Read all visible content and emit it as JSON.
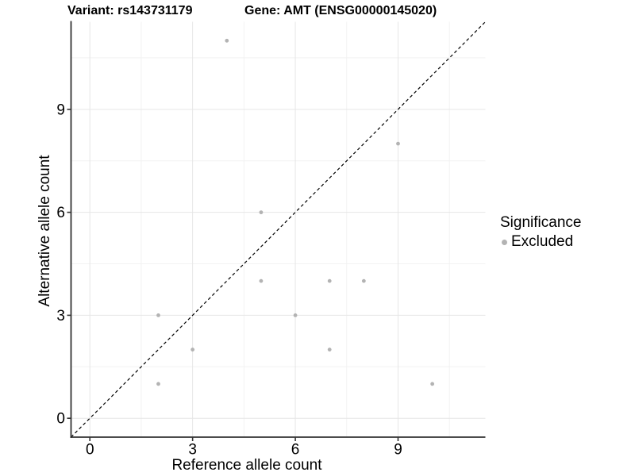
{
  "titles": {
    "variant": "Variant: rs143731179",
    "gene": "Gene: AMT (ENSG00000145020)"
  },
  "chart_data": {
    "type": "scatter",
    "title_left": "Variant: rs143731179",
    "title_right": "Gene: AMT (ENSG00000145020)",
    "xlabel": "Reference allele count",
    "ylabel": "Alternative allele count",
    "xlim": [
      -0.55,
      11.55
    ],
    "ylim": [
      -0.55,
      11.55
    ],
    "xticks": [
      0,
      3,
      6,
      9
    ],
    "yticks": [
      0,
      3,
      6,
      9
    ],
    "xminor": [
      1.5,
      4.5,
      7.5,
      10.5
    ],
    "yminor": [
      1.5,
      4.5,
      7.5,
      10.5
    ],
    "grid": true,
    "identity_line": {
      "style": "dashed",
      "from": [
        -0.55,
        -0.55
      ],
      "to": [
        11.55,
        11.55
      ],
      "color": "#000000"
    },
    "series": [
      {
        "name": "Excluded",
        "color": "#b3b3b3",
        "point_radius": 2.4,
        "points": [
          [
            2,
            1
          ],
          [
            2,
            3
          ],
          [
            3,
            2
          ],
          [
            4,
            11
          ],
          [
            5,
            4
          ],
          [
            5,
            6
          ],
          [
            6,
            3
          ],
          [
            7,
            2
          ],
          [
            7,
            4
          ],
          [
            8,
            4
          ],
          [
            9,
            8
          ],
          [
            10,
            1
          ]
        ]
      }
    ],
    "legend": {
      "position": "right",
      "title": "Significance",
      "items": [
        {
          "label": "Excluded",
          "color": "#b3b3b3"
        }
      ]
    },
    "colors": {
      "grid_major": "#e6e6e6",
      "grid_minor": "#f2f2f2",
      "axis_line": "#333333",
      "tick_text": "#000000",
      "point": "#b3b3b3"
    }
  }
}
